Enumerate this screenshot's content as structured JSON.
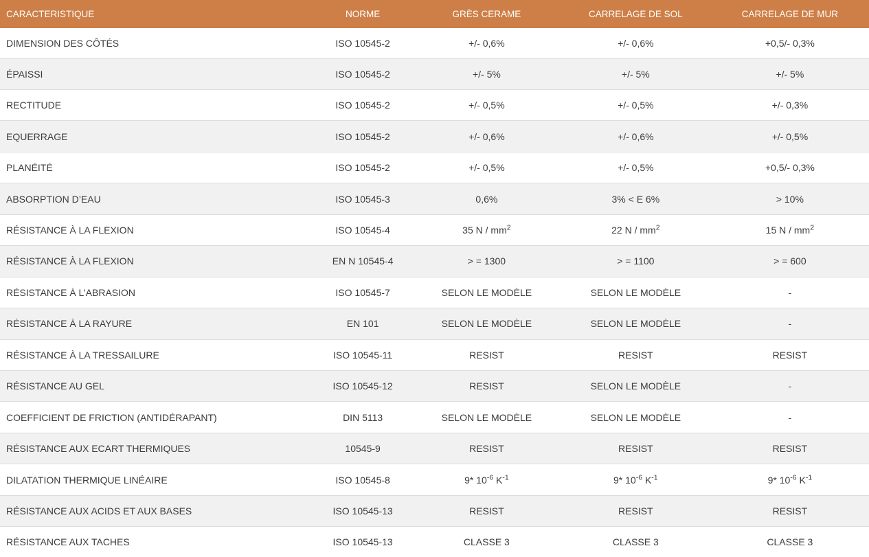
{
  "colors": {
    "header_bg": "#cd7f47",
    "header_text": "#ffffff",
    "row_bg": "#ffffff",
    "row_alt_bg": "#f1f1f1",
    "border": "#dcdcdc",
    "text": "#3c3c3c"
  },
  "table": {
    "columns": [
      {
        "label": "CARACTERISTIQUE"
      },
      {
        "label": "NORME"
      },
      {
        "label": "GRÈS CERAME"
      },
      {
        "label": "CARRELAGE DE SOL"
      },
      {
        "label": "CARRELAGE DE MUR"
      }
    ],
    "rows": [
      [
        "DIMENSION DES CÔTÉS",
        "ISO 10545-2",
        "+/- 0,6%",
        "+/- 0,6%",
        "+0,5/- 0,3%"
      ],
      [
        "ÉPAISSI",
        "ISO 10545-2",
        "+/- 5%",
        "+/- 5%",
        "+/- 5%"
      ],
      [
        "RECTITUDE",
        "ISO 10545-2",
        "+/- 0,5%",
        "+/- 0,5%",
        "+/- 0,3%"
      ],
      [
        "EQUERRAGE",
        "ISO 10545-2",
        "+/- 0,6%",
        "+/- 0,6%",
        "+/- 0,5%"
      ],
      [
        "PLANÉITÉ",
        "ISO 10545-2",
        "+/- 0,5%",
        "+/- 0,5%",
        "+0,5/- 0,3%"
      ],
      [
        "ABSORPTION D’EAU",
        "ISO 10545-3",
        "0,6%",
        "3% < E 6%",
        "> 10%"
      ],
      [
        "RÉSISTANCE À LA FLEXION",
        "ISO 10545-4",
        "35 N / mm^{2}",
        "22 N / mm^{2}",
        "15 N / mm^{2}"
      ],
      [
        "RÉSISTANCE À LA FLEXION",
        "EN N 10545-4",
        "> = 1300",
        "> = 1100",
        "> = 600"
      ],
      [
        "RÉSISTANCE À L’ABRASION",
        "ISO 10545-7",
        "SELON LE MODÈLE",
        "SELON LE MODÈLE",
        "-"
      ],
      [
        "RÉSISTANCE À LA RAYURE",
        "EN 101",
        "SELON LE MODÈLE",
        "SELON LE MODÈLE",
        "-"
      ],
      [
        "RÉSISTANCE À LA TRESSAILURE",
        "ISO 10545-11",
        "RESIST",
        "RESIST",
        "RESIST"
      ],
      [
        "RÉSISTANCE AU GEL",
        "ISO 10545-12",
        "RESIST",
        "SELON LE MODÈLE",
        "-"
      ],
      [
        "COEFFICIENT DE FRICTION (ANTIDÉRAPANT)",
        "DIN 5113",
        "SELON LE MODÈLE",
        "SELON LE MODÈLE",
        "-"
      ],
      [
        "RÉSISTANCE AUX ECART THERMIQUES",
        "10545-9",
        "RESIST",
        "RESIST",
        "RESIST"
      ],
      [
        "DILATATION THERMIQUE LINÉAIRE",
        "ISO 10545-8",
        "9* 10^{-6} K^{-1}",
        "9* 10^{-6} K^{-1}",
        "9* 10^{-6} K^{-1}"
      ],
      [
        "RÉSISTANCE AUX ACIDS ET AUX BASES",
        "ISO 10545-13",
        "RESIST",
        "RESIST",
        "RESIST"
      ],
      [
        "RÉSISTANCE AUX TACHES",
        "ISO 10545-13",
        "CLASSE 3",
        "CLASSE 3",
        "CLASSE 3"
      ]
    ]
  }
}
